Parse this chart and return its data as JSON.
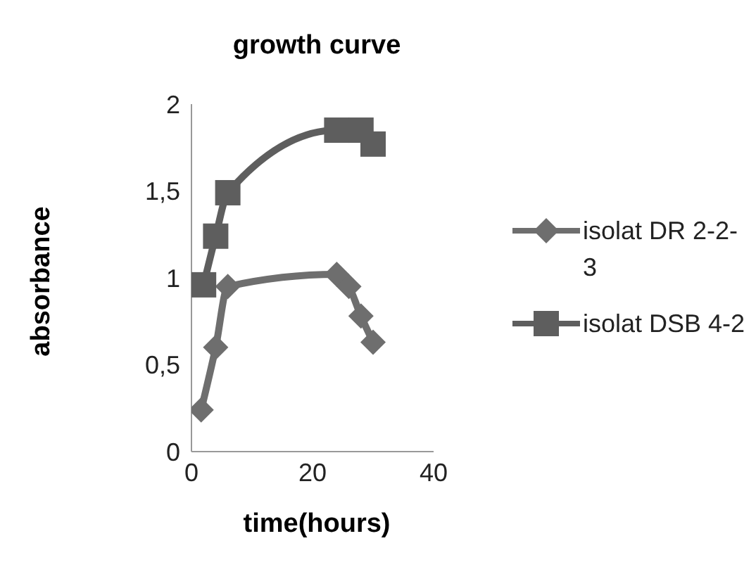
{
  "chart_data": {
    "type": "line",
    "title": "growth curve",
    "xlabel": "time(hours)",
    "ylabel": "absorbance",
    "xlim": [
      0,
      40
    ],
    "xticks": [
      0,
      20,
      40
    ],
    "ylim": [
      0,
      2
    ],
    "yticks": [
      0,
      {
        "value": 0.5,
        "label": "0,5"
      },
      1,
      {
        "value": 1.5,
        "label": "1,5"
      },
      2
    ],
    "grid": false,
    "legend": "right",
    "series": [
      {
        "name": "isolat DR 2-2-3",
        "color": "#6e6e6e",
        "marker": "diamond",
        "x": [
          1.6,
          4,
          6,
          24,
          26,
          28,
          30
        ],
        "values": [
          0.24,
          0.6,
          0.95,
          1.02,
          0.95,
          0.78,
          0.63
        ]
      },
      {
        "name": "isolat DSB 4-2",
        "color": "#5e5e5e",
        "marker": "square",
        "x": [
          2,
          4,
          6,
          24,
          28,
          30
        ],
        "values": [
          0.96,
          1.24,
          1.49,
          1.85,
          1.85,
          1.77
        ]
      }
    ]
  }
}
